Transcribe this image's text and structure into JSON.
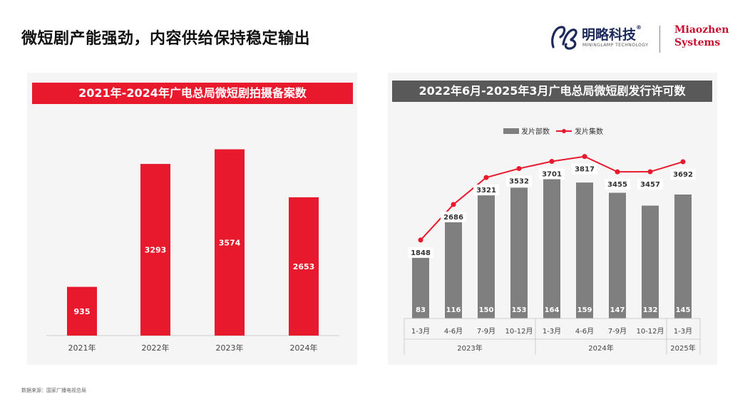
{
  "page": {
    "title": "微短剧产能强劲，内容供给保持稳定输出",
    "source": "数据来源：国家广播电视总局"
  },
  "logos": {
    "cn_name": "明略科技",
    "reg_mark": "®",
    "en_name": "MININGLAMP TECHNOLOGY",
    "brand_line1": "Miaozhen",
    "brand_line2": "Systems"
  },
  "colors": {
    "red": "#e8192c",
    "grey_bar": "#7f7f7f",
    "grey_banner": "#595959",
    "line": "#e8192c"
  },
  "chart_data": [
    {
      "type": "bar",
      "title": "2021年-2024年广电总局微短剧拍摄备案数",
      "categories": [
        "2021年",
        "2022年",
        "2023年",
        "2024年"
      ],
      "values": [
        935,
        3293,
        3574,
        2653
      ],
      "ylim": [
        0,
        3800
      ],
      "grid": false
    },
    {
      "type": "bar",
      "title": "2022年6月-2025年3月广电总局微短剧发行许可数",
      "legend_position": "top",
      "categories": [
        "1-3月",
        "4-6月",
        "7-9月",
        "10-12月",
        "1-3月",
        "4-6月",
        "7-9月",
        "10-12月",
        "1-3月"
      ],
      "category_groups": [
        {
          "label": "2023年",
          "span": 4
        },
        {
          "label": "2024年",
          "span": 4
        },
        {
          "label": "2025年",
          "span": 1
        }
      ],
      "series": [
        {
          "name": "发片部数",
          "type": "bar",
          "values": [
            83,
            116,
            150,
            153,
            164,
            159,
            147,
            132,
            145
          ]
        },
        {
          "name": "发片集数",
          "type": "line",
          "values": [
            1848,
            2686,
            3321,
            3532,
            3701,
            3817,
            3455,
            3457,
            3692
          ]
        }
      ],
      "ylim_bars": [
        0,
        190
      ],
      "ylim_line": [
        0,
        4700
      ],
      "grid": false
    }
  ]
}
